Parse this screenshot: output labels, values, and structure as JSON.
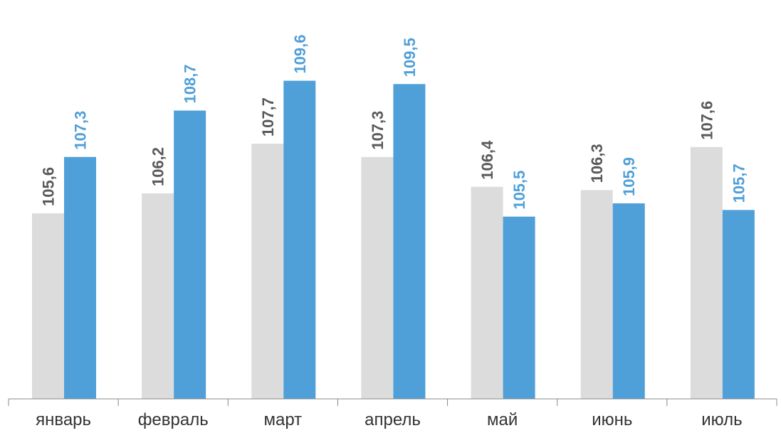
{
  "chart_data": {
    "type": "bar",
    "title": "",
    "xlabel": "",
    "ylabel": "",
    "categories": [
      "январь",
      "февраль",
      "март",
      "апрель",
      "май",
      "июнь",
      "июль"
    ],
    "series": [
      {
        "values": [
          105.6,
          106.2,
          107.7,
          107.3,
          106.4,
          106.3,
          107.6
        ],
        "color": "#dcdcdc",
        "label_color": "#595959"
      },
      {
        "values": [
          107.3,
          108.7,
          109.6,
          109.5,
          105.5,
          105.9,
          105.7
        ],
        "color": "#4f9fd8",
        "label_color": "#4f9fd8"
      }
    ],
    "ylim": [
      100,
      111.5
    ],
    "grid": false,
    "legend": "none",
    "decimal_separator": ","
  }
}
